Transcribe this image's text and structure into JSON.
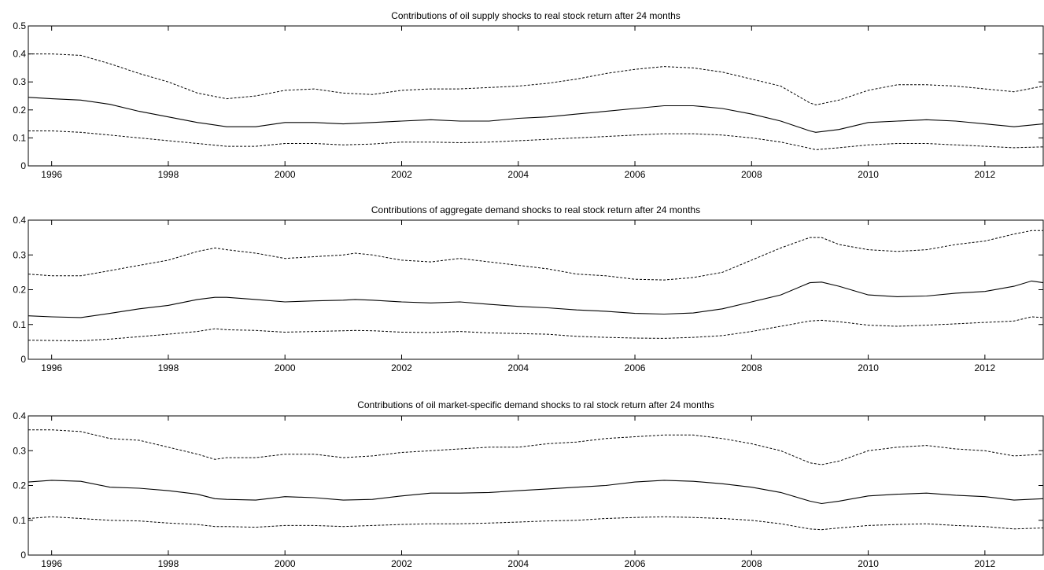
{
  "chart_data": [
    {
      "type": "line",
      "title": "Contributions of oil supply shocks to real stock return after 24 months",
      "xlabel": "",
      "ylabel": "",
      "xlim": [
        1995.6,
        2013.0
      ],
      "ylim": [
        0,
        0.5
      ],
      "x_ticks": [
        1996,
        1998,
        2000,
        2002,
        2004,
        2006,
        2008,
        2010,
        2012
      ],
      "x_tick_labels": [
        "1996",
        "1998",
        "2000",
        "2002",
        "2004",
        "2006",
        "2008",
        "2010",
        "2012"
      ],
      "y_ticks": [
        0,
        0.1,
        0.2,
        0.3,
        0.4,
        0.5
      ],
      "y_tick_labels": [
        "0",
        "0.1",
        "0.2",
        "0.3",
        "0.4",
        "0.5"
      ],
      "grid": false,
      "legend": "none",
      "x": [
        1995.6,
        1996.0,
        1996.5,
        1997.0,
        1997.5,
        1998.0,
        1998.5,
        1999.0,
        1999.5,
        2000.0,
        2000.5,
        2001.0,
        2001.5,
        2002.0,
        2002.5,
        2003.0,
        2003.5,
        2004.0,
        2004.5,
        2005.0,
        2005.5,
        2006.0,
        2006.5,
        2007.0,
        2007.5,
        2008.0,
        2008.5,
        2009.0,
        2009.1,
        2009.5,
        2010.0,
        2010.5,
        2011.0,
        2011.5,
        2012.0,
        2012.5,
        2013.0
      ],
      "series": [
        {
          "style": "dashed",
          "values": [
            0.4,
            0.4,
            0.395,
            0.365,
            0.33,
            0.3,
            0.26,
            0.24,
            0.25,
            0.27,
            0.275,
            0.26,
            0.255,
            0.27,
            0.275,
            0.275,
            0.28,
            0.285,
            0.295,
            0.31,
            0.33,
            0.345,
            0.355,
            0.35,
            0.335,
            0.31,
            0.285,
            0.225,
            0.218,
            0.235,
            0.27,
            0.29,
            0.29,
            0.285,
            0.275,
            0.265,
            0.285
          ]
        },
        {
          "style": "solid",
          "values": [
            0.245,
            0.24,
            0.235,
            0.22,
            0.195,
            0.175,
            0.155,
            0.14,
            0.14,
            0.155,
            0.155,
            0.15,
            0.155,
            0.16,
            0.165,
            0.16,
            0.16,
            0.17,
            0.175,
            0.185,
            0.195,
            0.205,
            0.215,
            0.215,
            0.205,
            0.185,
            0.16,
            0.125,
            0.12,
            0.13,
            0.155,
            0.16,
            0.165,
            0.16,
            0.15,
            0.14,
            0.15
          ]
        },
        {
          "style": "dashed",
          "values": [
            0.125,
            0.125,
            0.12,
            0.11,
            0.1,
            0.09,
            0.08,
            0.07,
            0.07,
            0.08,
            0.08,
            0.075,
            0.078,
            0.085,
            0.085,
            0.083,
            0.085,
            0.09,
            0.095,
            0.1,
            0.105,
            0.11,
            0.115,
            0.115,
            0.11,
            0.1,
            0.085,
            0.063,
            0.058,
            0.065,
            0.075,
            0.08,
            0.08,
            0.075,
            0.07,
            0.065,
            0.068
          ]
        }
      ]
    },
    {
      "type": "line",
      "title": "Contributions of aggregate demand shocks to real stock return after 24 months",
      "xlabel": "",
      "ylabel": "",
      "xlim": [
        1995.6,
        2013.0
      ],
      "ylim": [
        0,
        0.4
      ],
      "x_ticks": [
        1996,
        1998,
        2000,
        2002,
        2004,
        2006,
        2008,
        2010,
        2012
      ],
      "x_tick_labels": [
        "1996",
        "1998",
        "2000",
        "2002",
        "2004",
        "2006",
        "2008",
        "2010",
        "2012"
      ],
      "y_ticks": [
        0,
        0.1,
        0.2,
        0.3,
        0.4
      ],
      "y_tick_labels": [
        "0",
        "0.1",
        "0.2",
        "0.3",
        "0.4"
      ],
      "grid": false,
      "legend": "none",
      "x": [
        1995.6,
        1996.0,
        1996.5,
        1997.0,
        1997.5,
        1998.0,
        1998.5,
        1998.8,
        1999.0,
        1999.5,
        2000.0,
        2000.5,
        2001.0,
        2001.2,
        2001.5,
        2002.0,
        2002.5,
        2003.0,
        2003.5,
        2004.0,
        2004.5,
        2005.0,
        2005.5,
        2006.0,
        2006.5,
        2007.0,
        2007.5,
        2008.0,
        2008.5,
        2009.0,
        2009.2,
        2009.5,
        2010.0,
        2010.5,
        2011.0,
        2011.5,
        2012.0,
        2012.5,
        2012.8,
        2013.0
      ],
      "series": [
        {
          "style": "dashed",
          "values": [
            0.245,
            0.24,
            0.24,
            0.255,
            0.27,
            0.285,
            0.31,
            0.32,
            0.315,
            0.305,
            0.29,
            0.295,
            0.3,
            0.305,
            0.3,
            0.285,
            0.28,
            0.29,
            0.28,
            0.27,
            0.26,
            0.245,
            0.24,
            0.23,
            0.228,
            0.235,
            0.25,
            0.285,
            0.32,
            0.35,
            0.35,
            0.33,
            0.315,
            0.31,
            0.315,
            0.33,
            0.34,
            0.36,
            0.37,
            0.37
          ]
        },
        {
          "style": "solid",
          "values": [
            0.125,
            0.122,
            0.12,
            0.132,
            0.145,
            0.155,
            0.172,
            0.178,
            0.178,
            0.172,
            0.165,
            0.168,
            0.17,
            0.172,
            0.17,
            0.165,
            0.162,
            0.165,
            0.158,
            0.152,
            0.148,
            0.142,
            0.138,
            0.132,
            0.13,
            0.133,
            0.145,
            0.165,
            0.185,
            0.22,
            0.222,
            0.21,
            0.185,
            0.18,
            0.182,
            0.19,
            0.195,
            0.21,
            0.225,
            0.22
          ]
        },
        {
          "style": "dashed",
          "values": [
            0.055,
            0.054,
            0.053,
            0.058,
            0.065,
            0.072,
            0.08,
            0.088,
            0.085,
            0.083,
            0.078,
            0.08,
            0.082,
            0.083,
            0.082,
            0.078,
            0.077,
            0.08,
            0.076,
            0.074,
            0.072,
            0.066,
            0.063,
            0.061,
            0.06,
            0.063,
            0.068,
            0.08,
            0.095,
            0.11,
            0.112,
            0.108,
            0.098,
            0.095,
            0.098,
            0.102,
            0.106,
            0.11,
            0.122,
            0.12
          ]
        }
      ]
    },
    {
      "type": "line",
      "title": "Contributions of oil market-specific demand shocks to ral stock return after 24 months",
      "xlabel": "",
      "ylabel": "",
      "xlim": [
        1995.6,
        2013.0
      ],
      "ylim": [
        0,
        0.4
      ],
      "x_ticks": [
        1996,
        1998,
        2000,
        2002,
        2004,
        2006,
        2008,
        2010,
        2012
      ],
      "x_tick_labels": [
        "1996",
        "1998",
        "2000",
        "2002",
        "2004",
        "2006",
        "2008",
        "2010",
        "2012"
      ],
      "y_ticks": [
        0,
        0.1,
        0.2,
        0.3,
        0.4
      ],
      "y_tick_labels": [
        "0",
        "0.1",
        "0.2",
        "0.3",
        "0.4"
      ],
      "grid": false,
      "legend": "none",
      "x": [
        1995.6,
        1996.0,
        1996.5,
        1997.0,
        1997.5,
        1998.0,
        1998.5,
        1998.8,
        1999.0,
        1999.5,
        2000.0,
        2000.5,
        2001.0,
        2001.5,
        2002.0,
        2002.5,
        2003.0,
        2003.5,
        2004.0,
        2004.5,
        2005.0,
        2005.5,
        2006.0,
        2006.5,
        2007.0,
        2007.5,
        2008.0,
        2008.5,
        2009.0,
        2009.2,
        2009.5,
        2010.0,
        2010.5,
        2011.0,
        2011.5,
        2012.0,
        2012.5,
        2013.0
      ],
      "series": [
        {
          "style": "dashed",
          "values": [
            0.36,
            0.36,
            0.355,
            0.335,
            0.33,
            0.31,
            0.29,
            0.275,
            0.28,
            0.28,
            0.29,
            0.29,
            0.28,
            0.285,
            0.295,
            0.3,
            0.305,
            0.31,
            0.31,
            0.32,
            0.325,
            0.335,
            0.34,
            0.345,
            0.345,
            0.335,
            0.32,
            0.3,
            0.265,
            0.26,
            0.27,
            0.3,
            0.31,
            0.315,
            0.305,
            0.3,
            0.285,
            0.29
          ]
        },
        {
          "style": "solid",
          "values": [
            0.21,
            0.215,
            0.212,
            0.195,
            0.192,
            0.185,
            0.175,
            0.162,
            0.16,
            0.158,
            0.168,
            0.165,
            0.158,
            0.16,
            0.17,
            0.178,
            0.178,
            0.18,
            0.185,
            0.19,
            0.195,
            0.2,
            0.21,
            0.215,
            0.212,
            0.205,
            0.195,
            0.18,
            0.155,
            0.148,
            0.155,
            0.17,
            0.175,
            0.178,
            0.172,
            0.168,
            0.158,
            0.162
          ]
        },
        {
          "style": "dashed",
          "values": [
            0.105,
            0.11,
            0.105,
            0.1,
            0.098,
            0.092,
            0.088,
            0.082,
            0.082,
            0.08,
            0.085,
            0.085,
            0.082,
            0.085,
            0.088,
            0.09,
            0.09,
            0.092,
            0.095,
            0.098,
            0.1,
            0.105,
            0.108,
            0.11,
            0.108,
            0.105,
            0.1,
            0.09,
            0.075,
            0.073,
            0.078,
            0.085,
            0.088,
            0.09,
            0.085,
            0.082,
            0.075,
            0.078
          ]
        }
      ]
    }
  ]
}
